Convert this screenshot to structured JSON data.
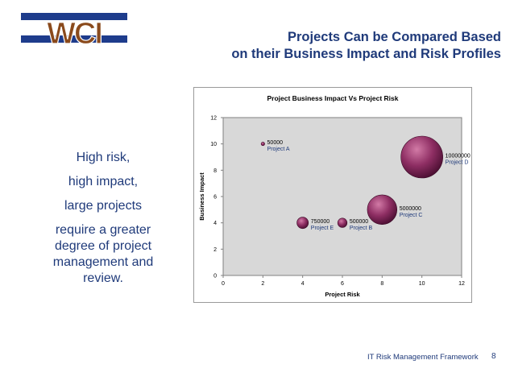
{
  "slide": {
    "logo_text": "WCI",
    "title_line1": "Projects Can be Compared Based",
    "title_line2": "on their Business Impact and Risk Profiles",
    "side_text": [
      "High risk,",
      "high impact,",
      "large projects",
      "require a greater",
      "degree of project",
      "management and",
      "review."
    ],
    "footer": "IT Risk Management Framework",
    "page_number": "8"
  },
  "colors": {
    "title": "#1f3a7a",
    "logo_blue": "#1e3c8c",
    "logo_brown": "#8a4a1c",
    "bubble": "#8e2e63",
    "plot_bg": "#d8d8d8"
  },
  "chart_data": {
    "type": "bubble",
    "title": "Project Business Impact Vs Project Risk",
    "xlabel": "Project Risk",
    "ylabel": "Business Impact",
    "xlim": [
      0,
      12
    ],
    "ylim": [
      0,
      12
    ],
    "xticks": [
      0,
      2,
      4,
      6,
      8,
      10,
      12
    ],
    "yticks": [
      0,
      2,
      4,
      6,
      8,
      10,
      12
    ],
    "grid": false,
    "points": [
      {
        "name": "Project A",
        "x": 2,
        "y": 10,
        "size": 50000,
        "size_label": "50000"
      },
      {
        "name": "Project E",
        "x": 4,
        "y": 4,
        "size": 750000,
        "size_label": "750000"
      },
      {
        "name": "Project B",
        "x": 6,
        "y": 4,
        "size": 500000,
        "size_label": "500000"
      },
      {
        "name": "Project C",
        "x": 8,
        "y": 5,
        "size": 5000000,
        "size_label": "5000000"
      },
      {
        "name": "Project D",
        "x": 10,
        "y": 9,
        "size": 10000000,
        "size_label": "10000000"
      }
    ]
  }
}
